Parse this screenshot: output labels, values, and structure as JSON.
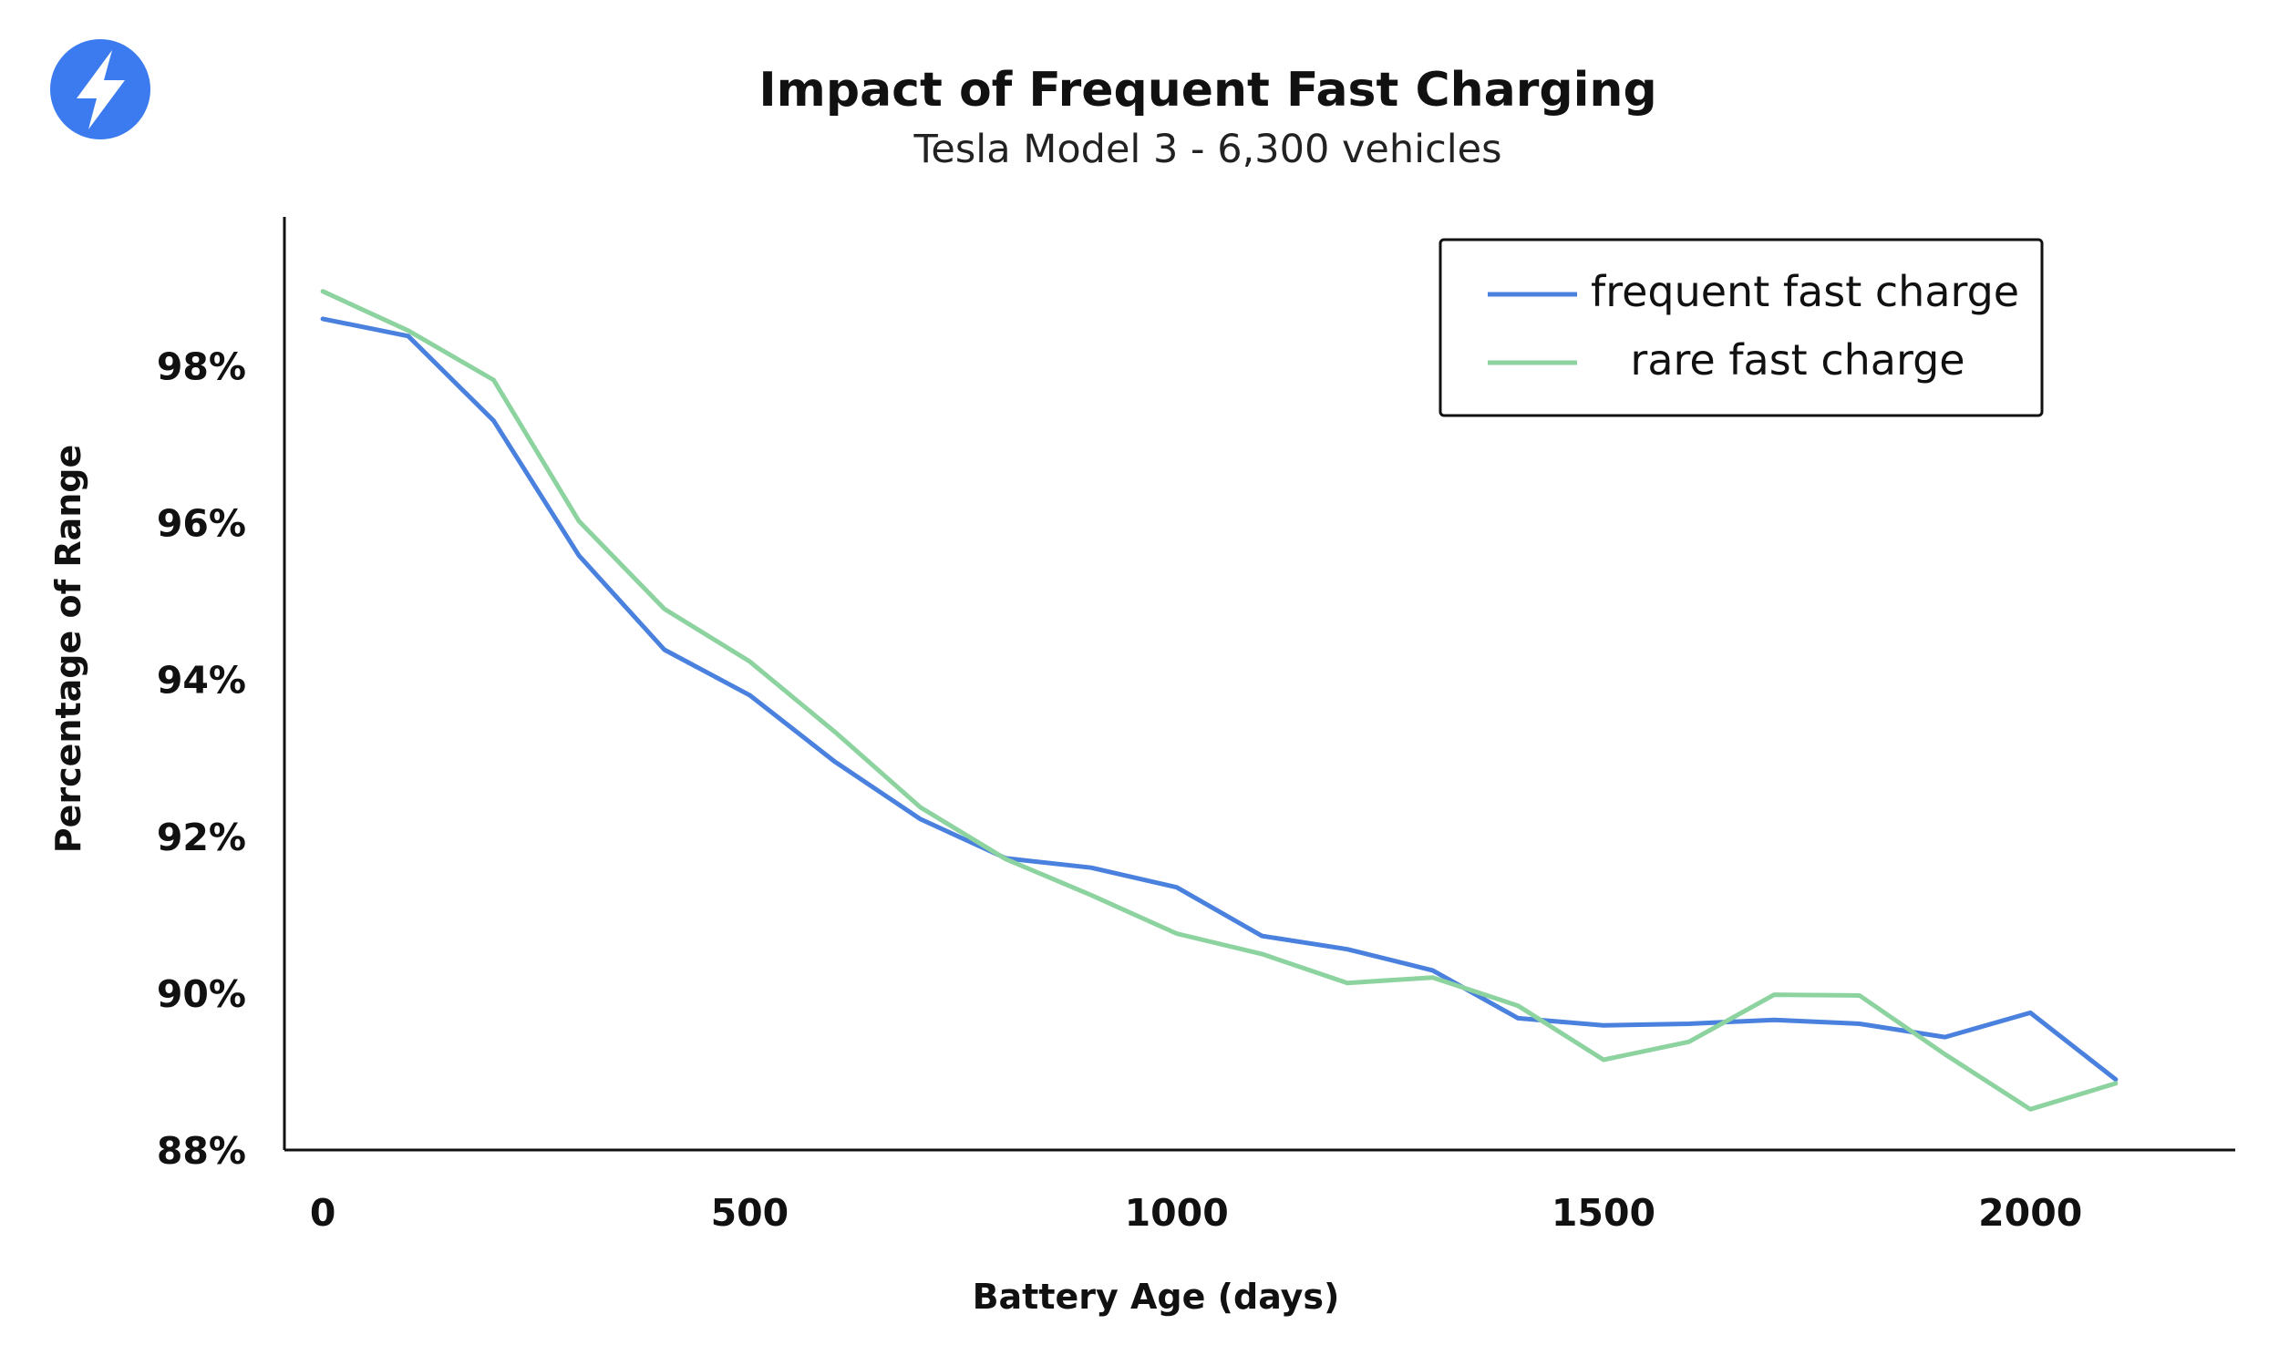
{
  "logo": {
    "icon": "lightning-bolt-icon",
    "color": "#3b7bef"
  },
  "chart_data": {
    "type": "line",
    "title": "Impact of Frequent Fast Charging",
    "subtitle": "Tesla Model 3 - 6,300 vehicles",
    "xlabel": "Battery Age (days)",
    "ylabel": "Percentage of Range",
    "xlim": [
      -45,
      2240
    ],
    "ylim": [
      88,
      99.9
    ],
    "x_ticks": [
      {
        "value": 0,
        "label": "0"
      },
      {
        "value": 500,
        "label": "500"
      },
      {
        "value": 1000,
        "label": "1000"
      },
      {
        "value": 1500,
        "label": "1500"
      },
      {
        "value": 2000,
        "label": "2000"
      }
    ],
    "y_ticks": [
      {
        "value": 88,
        "label": "88%"
      },
      {
        "value": 90,
        "label": "90%"
      },
      {
        "value": 92,
        "label": "92%"
      },
      {
        "value": 94,
        "label": "94%"
      },
      {
        "value": 96,
        "label": "96%"
      },
      {
        "value": 98,
        "label": "98%"
      }
    ],
    "grid": false,
    "legend_position": "top-right",
    "x": [
      0,
      100,
      200,
      300,
      400,
      500,
      600,
      700,
      800,
      900,
      1000,
      1100,
      1200,
      1300,
      1400,
      1500,
      1600,
      1700,
      1800,
      1900,
      2000,
      2100
    ],
    "series": [
      {
        "name": "frequent fast charge",
        "color": "#4a81de",
        "values": [
          98.6,
          98.38,
          97.3,
          95.58,
          94.38,
          93.8,
          92.95,
          92.22,
          91.72,
          91.6,
          91.35,
          90.73,
          90.56,
          90.29,
          89.68,
          89.59,
          89.61,
          89.66,
          89.61,
          89.44,
          89.75,
          88.9
        ]
      },
      {
        "name": "rare fast charge",
        "color": "#8dd3a0",
        "values": [
          98.95,
          98.45,
          97.82,
          96.02,
          94.9,
          94.23,
          93.33,
          92.37,
          91.71,
          91.25,
          90.76,
          90.5,
          90.13,
          90.2,
          89.84,
          89.15,
          89.38,
          89.98,
          89.97,
          89.22,
          88.52,
          88.85
        ]
      }
    ]
  }
}
